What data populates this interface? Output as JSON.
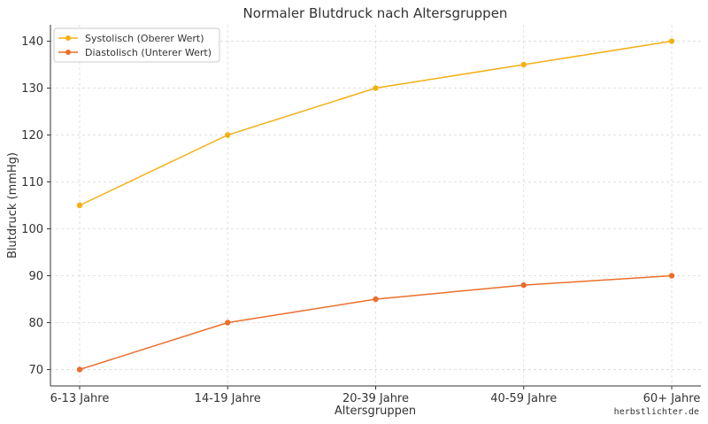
{
  "chart_data": {
    "type": "line",
    "title": "Normaler Blutdruck nach Altersgruppen",
    "xlabel": "Altersgruppen",
    "ylabel": "Blutdruck (mmHg)",
    "categories": [
      "6-13 Jahre",
      "14-19 Jahre",
      "20-39 Jahre",
      "40-59 Jahre",
      "60+ Jahre"
    ],
    "ylim": [
      66.5,
      143.5
    ],
    "yticks": [
      70,
      80,
      90,
      100,
      110,
      120,
      130,
      140
    ],
    "grid": true,
    "legend_position": "top-left",
    "series": [
      {
        "name": "Systolisch (Oberer Wert)",
        "color": "#f2b014",
        "values": [
          105,
          120,
          130,
          135,
          140
        ]
      },
      {
        "name": "Diastolisch (Unterer Wert)",
        "color": "#eb6f2b",
        "values": [
          70,
          80,
          85,
          88,
          90
        ]
      }
    ]
  },
  "watermark": "herbstlichter.de"
}
